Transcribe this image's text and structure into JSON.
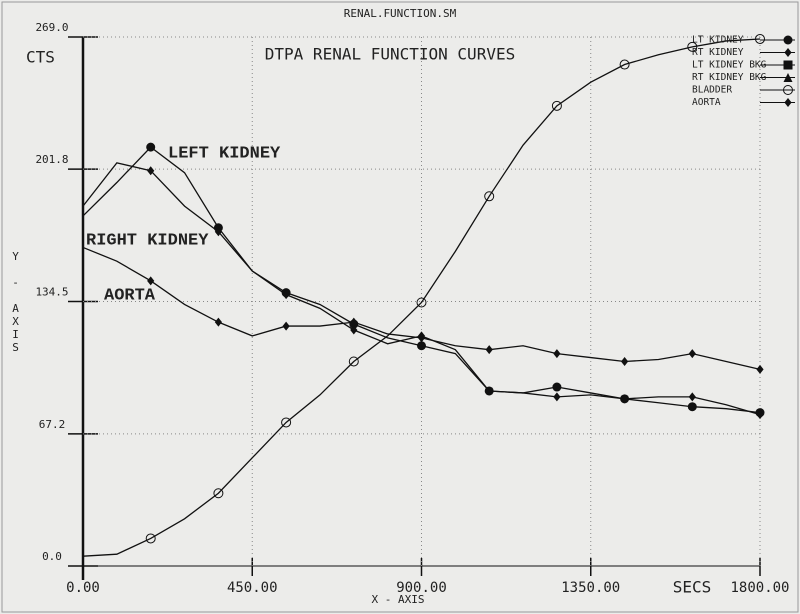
{
  "chart_data": {
    "type": "line",
    "window_title": "RENAL.FUNCTION.SM",
    "title": "DTPA RENAL FUNCTION CURVES",
    "y_label": "CTS",
    "y_axis_label": "Y - AXIS",
    "x_axis_label": "X - AXIS",
    "x_unit": "SECS",
    "xlim": [
      0,
      1800
    ],
    "ylim": [
      0,
      269
    ],
    "xticks": [
      {
        "value": 0,
        "label": "0.00"
      },
      {
        "value": 450,
        "label": "450.00"
      },
      {
        "value": 900,
        "label": "900.00"
      },
      {
        "value": 1350,
        "label": "1350.00"
      },
      {
        "value": 1800,
        "label": "1800.00"
      }
    ],
    "yticks": [
      {
        "value": 0,
        "label": "0.0"
      },
      {
        "value": 67.2,
        "label": "67.2"
      },
      {
        "value": 134.5,
        "label": "134.5"
      },
      {
        "value": 201.8,
        "label": "201.8"
      },
      {
        "value": 269,
        "label": "269.0"
      }
    ],
    "grid": true,
    "legend": "top-right",
    "x": [
      0,
      90,
      180,
      270,
      360,
      450,
      540,
      630,
      720,
      810,
      900,
      990,
      1080,
      1170,
      1260,
      1350,
      1440,
      1530,
      1620,
      1710,
      1800
    ],
    "series": [
      {
        "name": "LT KIDNEY",
        "color": "#111111",
        "marker": "dot",
        "values": [
          178,
          195,
          213,
          200,
          172,
          150,
          139,
          133,
          123,
          116,
          112,
          108,
          89,
          88,
          91,
          88,
          85,
          83,
          81,
          80,
          78
        ]
      },
      {
        "name": "RT KIDNEY",
        "color": "#111111",
        "marker": "diamond",
        "values": [
          183,
          205,
          201,
          183,
          170,
          150,
          138,
          131,
          120,
          113,
          117,
          110,
          89,
          88,
          86,
          87,
          85,
          86,
          86,
          82,
          77
        ]
      },
      {
        "name": "LT KIDNEY BKG",
        "color": "#111111",
        "marker": "square",
        "values": [
          null,
          null,
          null,
          null,
          null,
          null,
          null,
          null,
          null,
          null,
          null,
          null,
          null,
          null,
          null,
          null,
          null,
          null,
          null,
          null,
          null
        ]
      },
      {
        "name": "RT KIDNEY BKG",
        "color": "#111111",
        "marker": "triangle",
        "values": [
          null,
          null,
          null,
          null,
          null,
          null,
          null,
          null,
          null,
          null,
          null,
          null,
          null,
          null,
          null,
          null,
          null,
          null,
          null,
          null,
          null
        ]
      },
      {
        "name": "BLADDER",
        "color": "#111111",
        "marker": "circle",
        "values": [
          5,
          6,
          14,
          24,
          37,
          55,
          73,
          87,
          104,
          117,
          134,
          160,
          188,
          214,
          234,
          246,
          255,
          260,
          264,
          267,
          268
        ]
      },
      {
        "name": "AORTA",
        "color": "#111111",
        "marker": "diamond",
        "values": [
          162,
          155,
          145,
          133,
          124,
          117,
          122,
          122,
          124,
          118,
          116,
          112,
          110,
          112,
          108,
          106,
          104,
          105,
          108,
          104,
          100
        ]
      }
    ],
    "annotations": [
      "LEFT KIDNEY",
      "RIGHT KIDNEY",
      "AORTA"
    ]
  }
}
